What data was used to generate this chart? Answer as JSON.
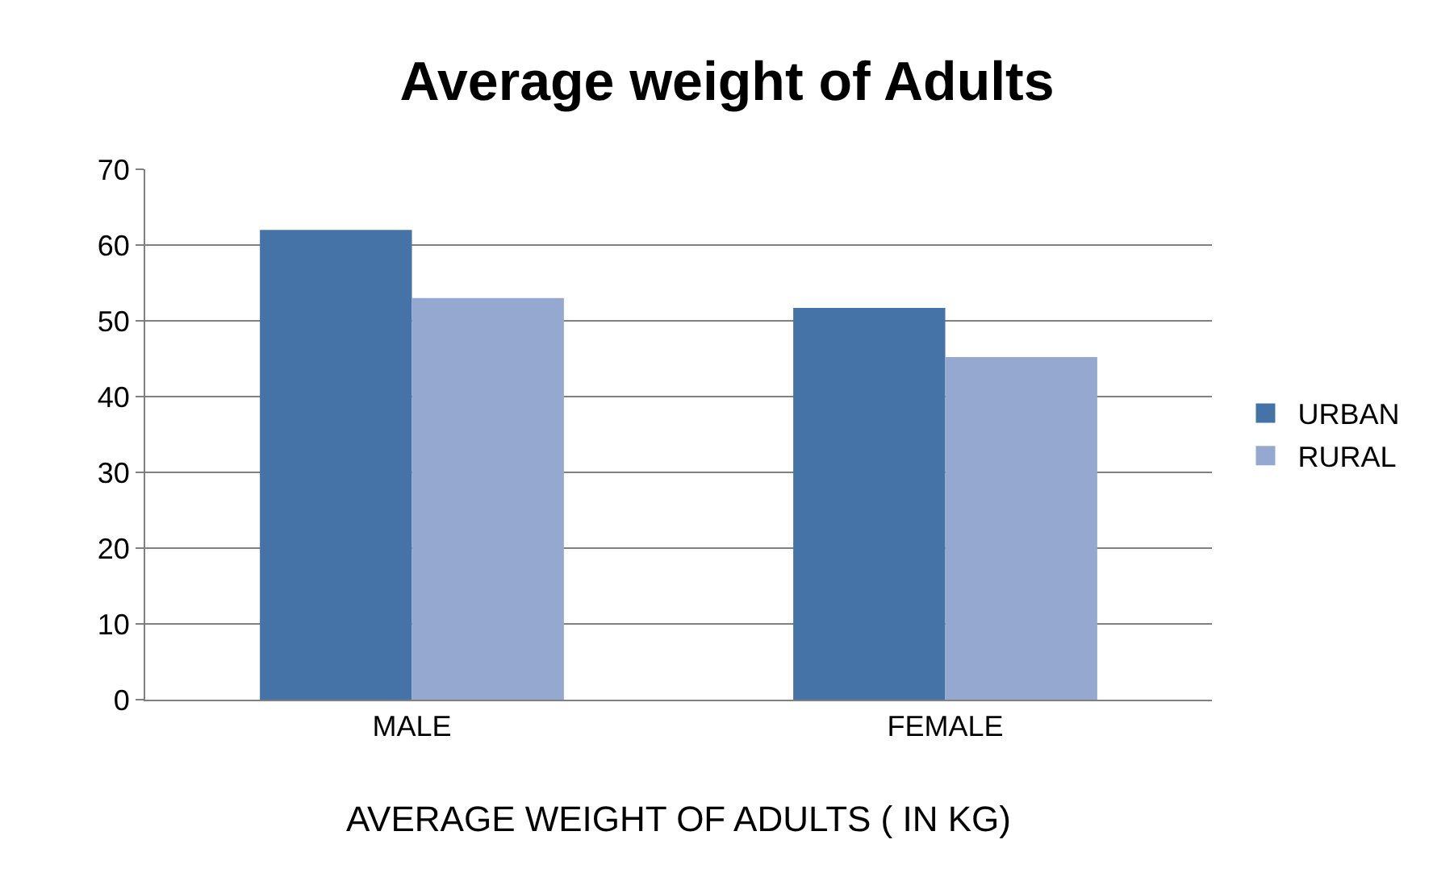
{
  "chart_data": {
    "type": "bar",
    "title": "Average weight of Adults",
    "xlabel": "AVERAGE WEIGHT OF ADULTS ( IN KG)",
    "categories": [
      "MALE",
      "FEMALE"
    ],
    "series": [
      {
        "name": "URBAN",
        "color": "#4572a7",
        "values": [
          62,
          51.7
        ]
      },
      {
        "name": "RURAL",
        "color": "#95a9d0",
        "values": [
          53,
          45.2
        ]
      }
    ],
    "ylim": [
      0,
      70
    ],
    "yticks": [
      0,
      10,
      20,
      30,
      40,
      50,
      60,
      70
    ],
    "grid": "y",
    "legend": "right"
  }
}
